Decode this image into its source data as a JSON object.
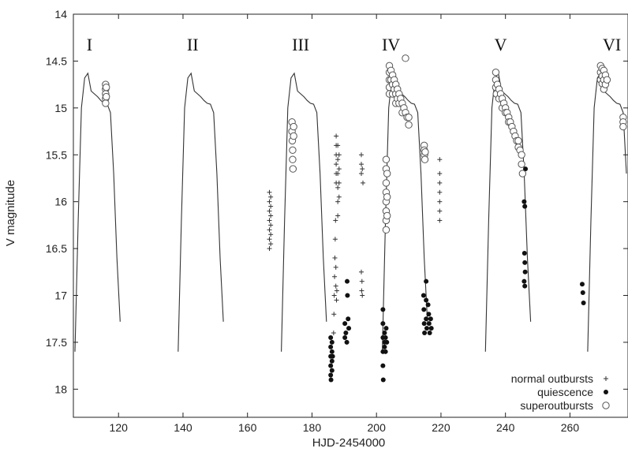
{
  "chart_data": {
    "type": "scatter",
    "xlabel": "HJD-2454000",
    "ylabel": "V magnitude",
    "xlim": [
      106,
      278
    ],
    "ylim": [
      14,
      18.3
    ],
    "y_inverted": true,
    "x_ticks": [
      120,
      140,
      160,
      180,
      200,
      220,
      240,
      260
    ],
    "y_ticks": [
      14,
      14.5,
      15,
      15.5,
      16,
      16.5,
      17,
      17.5,
      18
    ],
    "y_tick_labels": [
      "14",
      "14.5",
      "15",
      "15.5",
      "16",
      "16.5",
      "17",
      "17.5",
      "18"
    ],
    "grid": false,
    "legend_position": "bottom-right",
    "superoutburst_labels": [
      {
        "label": "I",
        "x": 111,
        "y": 14.32
      },
      {
        "label": "II",
        "x": 143,
        "y": 14.32
      },
      {
        "label": "III",
        "x": 176.5,
        "y": 14.32
      },
      {
        "label": "IV",
        "x": 204.5,
        "y": 14.32
      },
      {
        "label": "V",
        "x": 238.5,
        "y": 14.32
      },
      {
        "label": "VI",
        "x": 273,
        "y": 14.32
      }
    ],
    "series": [
      {
        "name": "normal outbursts",
        "marker": "plus",
        "points": [
          [
            166.8,
            15.9
          ],
          [
            166.8,
            16.0
          ],
          [
            166.8,
            16.1
          ],
          [
            166.8,
            16.2
          ],
          [
            166.8,
            16.3
          ],
          [
            166.8,
            16.4
          ],
          [
            166.8,
            16.5
          ],
          [
            167.2,
            15.95
          ],
          [
            167.2,
            16.05
          ],
          [
            167.2,
            16.15
          ],
          [
            167.2,
            16.25
          ],
          [
            167.2,
            16.35
          ],
          [
            167.2,
            16.45
          ],
          [
            186.7,
            17.4
          ],
          [
            186.8,
            17.2
          ],
          [
            186.9,
            17.0
          ],
          [
            187.0,
            16.8
          ],
          [
            187.1,
            16.6
          ],
          [
            187.2,
            16.4
          ],
          [
            187.3,
            16.2
          ],
          [
            187.5,
            15.3
          ],
          [
            187.5,
            15.4
          ],
          [
            187.5,
            15.5
          ],
          [
            187.5,
            15.6
          ],
          [
            187.5,
            15.7
          ],
          [
            187.5,
            15.8
          ],
          [
            188.0,
            15.4
          ],
          [
            188.0,
            15.55
          ],
          [
            188.0,
            15.7
          ],
          [
            188.0,
            15.85
          ],
          [
            188.0,
            16.0
          ],
          [
            188.0,
            16.15
          ],
          [
            188.4,
            15.5
          ],
          [
            188.4,
            15.65
          ],
          [
            188.4,
            15.8
          ],
          [
            188.4,
            15.95
          ],
          [
            187.4,
            16.7
          ],
          [
            187.4,
            16.9
          ],
          [
            187.6,
            17.05
          ],
          [
            187.7,
            16.95
          ],
          [
            195.3,
            15.5
          ],
          [
            195.3,
            15.6
          ],
          [
            195.3,
            15.7
          ],
          [
            195.6,
            15.65
          ],
          [
            195.8,
            15.8
          ],
          [
            195.3,
            16.75
          ],
          [
            195.5,
            16.85
          ],
          [
            195.4,
            16.95
          ],
          [
            195.6,
            17.0
          ],
          [
            219.6,
            15.55
          ],
          [
            219.6,
            15.7
          ],
          [
            219.6,
            15.8
          ],
          [
            219.6,
            15.9
          ],
          [
            219.6,
            16.0
          ],
          [
            219.6,
            16.1
          ],
          [
            219.6,
            16.2
          ]
        ]
      },
      {
        "name": "quiescence",
        "marker": "dot",
        "points": [
          [
            185.8,
            17.45
          ],
          [
            185.8,
            17.55
          ],
          [
            185.8,
            17.65
          ],
          [
            185.8,
            17.75
          ],
          [
            185.8,
            17.85
          ],
          [
            185.9,
            17.9
          ],
          [
            186.2,
            17.5
          ],
          [
            186.2,
            17.6
          ],
          [
            186.2,
            17.7
          ],
          [
            186.2,
            17.8
          ],
          [
            186.4,
            17.65
          ],
          [
            190.2,
            17.3
          ],
          [
            190.2,
            17.45
          ],
          [
            190.5,
            17.4
          ],
          [
            190.8,
            17.5
          ],
          [
            190.9,
            16.85
          ],
          [
            191.0,
            17.0
          ],
          [
            191.2,
            17.25
          ],
          [
            191.4,
            17.35
          ],
          [
            202.0,
            17.15
          ],
          [
            202.0,
            17.3
          ],
          [
            202.0,
            17.45
          ],
          [
            202.0,
            17.6
          ],
          [
            202.0,
            17.75
          ],
          [
            202.1,
            17.9
          ],
          [
            202.5,
            17.4
          ],
          [
            202.5,
            17.5
          ],
          [
            202.5,
            17.55
          ],
          [
            202.8,
            17.45
          ],
          [
            202.8,
            17.6
          ],
          [
            203.0,
            17.35
          ],
          [
            203.2,
            17.5
          ],
          [
            214.6,
            17.0
          ],
          [
            214.7,
            17.15
          ],
          [
            214.8,
            17.3
          ],
          [
            214.9,
            17.4
          ],
          [
            215.4,
            16.85
          ],
          [
            215.4,
            17.05
          ],
          [
            215.4,
            17.25
          ],
          [
            215.6,
            17.35
          ],
          [
            216.0,
            17.1
          ],
          [
            216.2,
            17.2
          ],
          [
            216.3,
            17.3
          ],
          [
            216.5,
            17.4
          ],
          [
            216.8,
            17.25
          ],
          [
            217.0,
            17.35
          ],
          [
            245.8,
            16.0
          ],
          [
            246.0,
            16.05
          ],
          [
            245.9,
            16.55
          ],
          [
            246.0,
            16.65
          ],
          [
            246.1,
            16.75
          ],
          [
            245.8,
            16.85
          ],
          [
            246.0,
            16.9
          ],
          [
            246.2,
            15.65
          ],
          [
            263.8,
            16.88
          ],
          [
            264.0,
            16.97
          ],
          [
            264.2,
            17.08
          ]
        ]
      },
      {
        "name": "superoutbursts",
        "marker": "circle",
        "points": [
          [
            116.0,
            14.75
          ],
          [
            116.0,
            14.8
          ],
          [
            116.0,
            14.85
          ],
          [
            116.0,
            14.9
          ],
          [
            116.0,
            14.95
          ],
          [
            116.2,
            14.78
          ],
          [
            116.2,
            14.88
          ],
          [
            173.8,
            15.15
          ],
          [
            173.8,
            15.25
          ],
          [
            173.9,
            15.35
          ],
          [
            174.0,
            15.45
          ],
          [
            174.0,
            15.55
          ],
          [
            174.1,
            15.65
          ],
          [
            174.3,
            15.2
          ],
          [
            174.3,
            15.3
          ],
          [
            203.0,
            15.55
          ],
          [
            203.0,
            15.65
          ],
          [
            203.0,
            15.8
          ],
          [
            203.0,
            15.9
          ],
          [
            203.0,
            16.0
          ],
          [
            203.0,
            16.1
          ],
          [
            203.0,
            16.2
          ],
          [
            203.0,
            16.3
          ],
          [
            203.3,
            15.7
          ],
          [
            203.3,
            15.95
          ],
          [
            203.3,
            16.15
          ],
          [
            204.0,
            14.55
          ],
          [
            204.0,
            14.62
          ],
          [
            204.0,
            14.7
          ],
          [
            204.0,
            14.78
          ],
          [
            204.0,
            14.85
          ],
          [
            204.5,
            14.6
          ],
          [
            204.5,
            14.7
          ],
          [
            205.0,
            14.65
          ],
          [
            205.0,
            14.75
          ],
          [
            205.0,
            14.85
          ],
          [
            205.5,
            14.7
          ],
          [
            205.5,
            14.8
          ],
          [
            206.0,
            14.75
          ],
          [
            206.0,
            14.85
          ],
          [
            206.0,
            14.95
          ],
          [
            206.5,
            14.8
          ],
          [
            206.5,
            14.9
          ],
          [
            207.0,
            14.85
          ],
          [
            207.0,
            14.95
          ],
          [
            207.5,
            14.9
          ],
          [
            208.0,
            14.95
          ],
          [
            208.0,
            15.05
          ],
          [
            208.5,
            15.0
          ],
          [
            209.0,
            14.47
          ],
          [
            209.0,
            15.05
          ],
          [
            209.5,
            15.1
          ],
          [
            210.0,
            15.1
          ],
          [
            210.0,
            15.18
          ],
          [
            214.8,
            15.4
          ],
          [
            214.8,
            15.45
          ],
          [
            214.9,
            15.5
          ],
          [
            215.0,
            15.55
          ],
          [
            215.1,
            15.47
          ],
          [
            237.0,
            14.62
          ],
          [
            237.0,
            14.7
          ],
          [
            237.0,
            14.78
          ],
          [
            237.2,
            14.85
          ],
          [
            237.5,
            14.75
          ],
          [
            238.0,
            14.8
          ],
          [
            238.0,
            14.9
          ],
          [
            238.5,
            14.85
          ],
          [
            239.0,
            14.9
          ],
          [
            239.0,
            15.0
          ],
          [
            239.5,
            14.95
          ],
          [
            240.0,
            15.0
          ],
          [
            240.0,
            15.05
          ],
          [
            240.5,
            15.05
          ],
          [
            241.0,
            15.1
          ],
          [
            241.0,
            15.15
          ],
          [
            241.5,
            15.15
          ],
          [
            242.0,
            15.2
          ],
          [
            242.5,
            15.25
          ],
          [
            243.0,
            15.3
          ],
          [
            243.5,
            15.35
          ],
          [
            244.0,
            15.35
          ],
          [
            244.0,
            15.42
          ],
          [
            244.5,
            15.45
          ],
          [
            245.0,
            15.5
          ],
          [
            245.0,
            15.6
          ],
          [
            245.3,
            15.7
          ],
          [
            269.5,
            14.55
          ],
          [
            269.5,
            14.62
          ],
          [
            269.5,
            14.7
          ],
          [
            270.0,
            14.58
          ],
          [
            270.0,
            14.66
          ],
          [
            270.0,
            14.74
          ],
          [
            270.5,
            14.6
          ],
          [
            270.5,
            14.7
          ],
          [
            270.5,
            14.8
          ],
          [
            271.0,
            14.65
          ],
          [
            271.0,
            14.75
          ],
          [
            271.5,
            14.7
          ],
          [
            276.5,
            15.1
          ],
          [
            276.5,
            15.15
          ],
          [
            276.5,
            15.2
          ]
        ]
      }
    ],
    "model_curves": [
      [
        [
          106.5,
          17.6
        ],
        [
          107.5,
          16.2
        ],
        [
          108.5,
          15.0
        ],
        [
          109.5,
          14.68
        ],
        [
          110.5,
          14.63
        ],
        [
          111.5,
          14.82
        ],
        [
          112.5,
          14.85
        ],
        [
          113.5,
          14.88
        ],
        [
          114.5,
          14.92
        ],
        [
          115.5,
          14.95
        ],
        [
          116.5,
          14.96
        ],
        [
          117.5,
          15.05
        ],
        [
          118.5,
          15.7
        ],
        [
          119.5,
          16.6
        ],
        [
          120.5,
          17.28
        ]
      ],
      [
        [
          138.5,
          17.6
        ],
        [
          139.5,
          16.2
        ],
        [
          140.5,
          15.0
        ],
        [
          141.5,
          14.68
        ],
        [
          142.5,
          14.63
        ],
        [
          143.5,
          14.82
        ],
        [
          144.5,
          14.85
        ],
        [
          145.5,
          14.88
        ],
        [
          146.5,
          14.92
        ],
        [
          147.5,
          14.95
        ],
        [
          148.5,
          14.96
        ],
        [
          149.5,
          15.05
        ],
        [
          150.5,
          15.7
        ],
        [
          151.5,
          16.6
        ],
        [
          152.5,
          17.28
        ]
      ],
      [
        [
          170.5,
          17.6
        ],
        [
          171.5,
          16.2
        ],
        [
          172.5,
          15.0
        ],
        [
          173.5,
          14.68
        ],
        [
          174.5,
          14.63
        ],
        [
          175.5,
          14.82
        ],
        [
          176.5,
          14.85
        ],
        [
          177.5,
          14.88
        ],
        [
          178.5,
          14.92
        ],
        [
          179.5,
          14.95
        ],
        [
          180.5,
          14.96
        ],
        [
          181.5,
          15.05
        ],
        [
          182.5,
          15.7
        ],
        [
          183.5,
          16.6
        ],
        [
          184.5,
          17.28
        ]
      ],
      [
        [
          201.8,
          17.6
        ],
        [
          202.8,
          16.2
        ],
        [
          203.8,
          15.0
        ],
        [
          204.8,
          14.68
        ],
        [
          205.8,
          14.63
        ],
        [
          206.8,
          14.82
        ],
        [
          207.8,
          14.85
        ],
        [
          208.8,
          14.88
        ],
        [
          209.8,
          14.92
        ],
        [
          210.8,
          14.95
        ],
        [
          211.8,
          14.96
        ],
        [
          212.8,
          15.05
        ],
        [
          213.8,
          15.7
        ],
        [
          214.8,
          16.6
        ],
        [
          215.8,
          17.28
        ]
      ],
      [
        [
          233.8,
          17.6
        ],
        [
          234.8,
          16.2
        ],
        [
          235.8,
          15.0
        ],
        [
          236.8,
          14.68
        ],
        [
          237.8,
          14.63
        ],
        [
          238.8,
          14.82
        ],
        [
          239.8,
          14.85
        ],
        [
          240.8,
          14.88
        ],
        [
          241.8,
          14.92
        ],
        [
          242.8,
          14.95
        ],
        [
          243.8,
          14.96
        ],
        [
          244.8,
          15.05
        ],
        [
          245.8,
          15.7
        ],
        [
          246.8,
          16.6
        ],
        [
          247.8,
          17.28
        ]
      ],
      [
        [
          265.5,
          17.6
        ],
        [
          266.5,
          16.2
        ],
        [
          267.5,
          15.0
        ],
        [
          268.5,
          14.68
        ],
        [
          269.5,
          14.63
        ],
        [
          270.5,
          14.82
        ],
        [
          271.5,
          14.85
        ],
        [
          272.5,
          14.88
        ],
        [
          273.5,
          14.92
        ],
        [
          274.5,
          14.95
        ],
        [
          275.5,
          14.96
        ],
        [
          276.5,
          15.05
        ],
        [
          277.5,
          15.7
        ]
      ]
    ]
  }
}
